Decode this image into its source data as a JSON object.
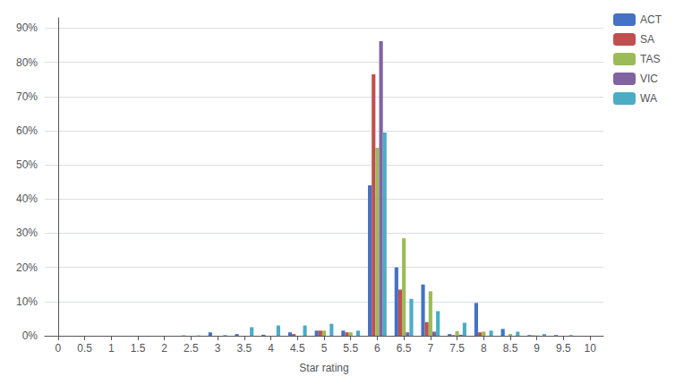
{
  "chart_data": {
    "type": "bar",
    "xlabel": "Star rating",
    "x": [
      2.5,
      3.0,
      3.5,
      4.0,
      4.5,
      5.0,
      5.5,
      6.0,
      6.5,
      7.0,
      7.5,
      8.0,
      8.5,
      9.0,
      9.5
    ],
    "series": [
      {
        "name": "ACT",
        "color": "#4472C4",
        "values": [
          0.001,
          0.01,
          0.005,
          0.003,
          0.01,
          0.015,
          0.015,
          0.44,
          0.2,
          0.15,
          0.005,
          0.096,
          0.02,
          0.002,
          0.002
        ]
      },
      {
        "name": "SA",
        "color": "#C0504D",
        "values": [
          null,
          null,
          null,
          null,
          0.005,
          0.015,
          0.01,
          0.765,
          0.135,
          0.04,
          0.002,
          0.01,
          null,
          0.001,
          null
        ]
      },
      {
        "name": "TAS",
        "color": "#9BBB59",
        "values": [
          null,
          null,
          null,
          null,
          null,
          0.015,
          0.01,
          0.55,
          0.285,
          0.13,
          0.013,
          0.012,
          0.005,
          0.001,
          null
        ]
      },
      {
        "name": "VIC",
        "color": "#8064A2",
        "values": [
          null,
          null,
          null,
          null,
          null,
          null,
          null,
          0.862,
          0.01,
          0.012,
          0.003,
          null,
          null,
          null,
          null
        ]
      },
      {
        "name": "WA",
        "color": "#4BACC6",
        "values": [
          0.001,
          0.002,
          0.025,
          0.03,
          0.03,
          0.035,
          0.015,
          0.595,
          0.108,
          0.072,
          0.038,
          0.015,
          0.012,
          0.005,
          0.002
        ]
      }
    ],
    "xlim": [
      -0.25,
      10.25
    ],
    "xticks": [
      0,
      0.5,
      1,
      1.5,
      2,
      2.5,
      3,
      3.5,
      4,
      4.5,
      5,
      5.5,
      6,
      6.5,
      7,
      7.5,
      8,
      8.5,
      9,
      9.5,
      10
    ],
    "ylim": [
      0,
      0.93
    ],
    "yticks": [
      {
        "value": 0,
        "label": "0%"
      },
      {
        "value": 0.1,
        "label": "10%"
      },
      {
        "value": 0.2,
        "label": "20%"
      },
      {
        "value": 0.3,
        "label": "30%"
      },
      {
        "value": 0.4,
        "label": "40%"
      },
      {
        "value": 0.5,
        "label": "50%"
      },
      {
        "value": 0.6,
        "label": "60%"
      },
      {
        "value": 0.7,
        "label": "70%"
      },
      {
        "value": 0.8,
        "label": "80%"
      },
      {
        "value": 0.9,
        "label": "90%"
      }
    ],
    "grid": true,
    "legend": "upper right"
  }
}
